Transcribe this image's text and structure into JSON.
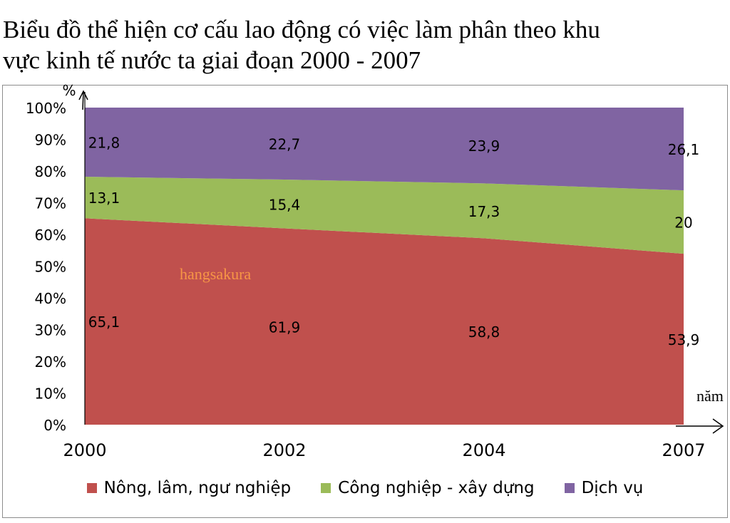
{
  "title": {
    "line1": "Biểu đồ thể hiện cơ cấu lao động có việc làm phân theo khu",
    "line2": "vực kinh tế nước ta giai đoạn 2000 - 2007"
  },
  "watermark": "hangsakura",
  "colors": {
    "agriculture": "#c0504d",
    "industry": "#9bbb59",
    "services": "#8064a2",
    "watermark": "#f79646"
  },
  "chart_data": {
    "type": "area",
    "stacked": "percent",
    "categories": [
      "2000",
      "2002",
      "2004",
      "2007"
    ],
    "series": [
      {
        "name": "Nông, lâm, ngư nghiệp",
        "values": [
          65.1,
          61.9,
          58.8,
          53.9
        ],
        "labels": [
          "65,1",
          "61,9",
          "58,8",
          "53,9"
        ]
      },
      {
        "name": "Công nghiệp - xây dựng",
        "values": [
          13.1,
          15.4,
          17.3,
          20
        ],
        "labels": [
          "13,1",
          "15,4",
          "17,3",
          "20"
        ]
      },
      {
        "name": "Dịch vụ",
        "values": [
          21.8,
          22.7,
          23.9,
          26.1
        ],
        "labels": [
          "21,8",
          "22,7",
          "23,9",
          "26,1"
        ]
      }
    ],
    "y_ticks": [
      "0%",
      "10%",
      "20%",
      "30%",
      "40%",
      "50%",
      "60%",
      "70%",
      "80%",
      "90%",
      "100%"
    ],
    "ylim": [
      0,
      100
    ],
    "ylabel": "%",
    "xlabel": "năm",
    "legend": "bottom"
  }
}
